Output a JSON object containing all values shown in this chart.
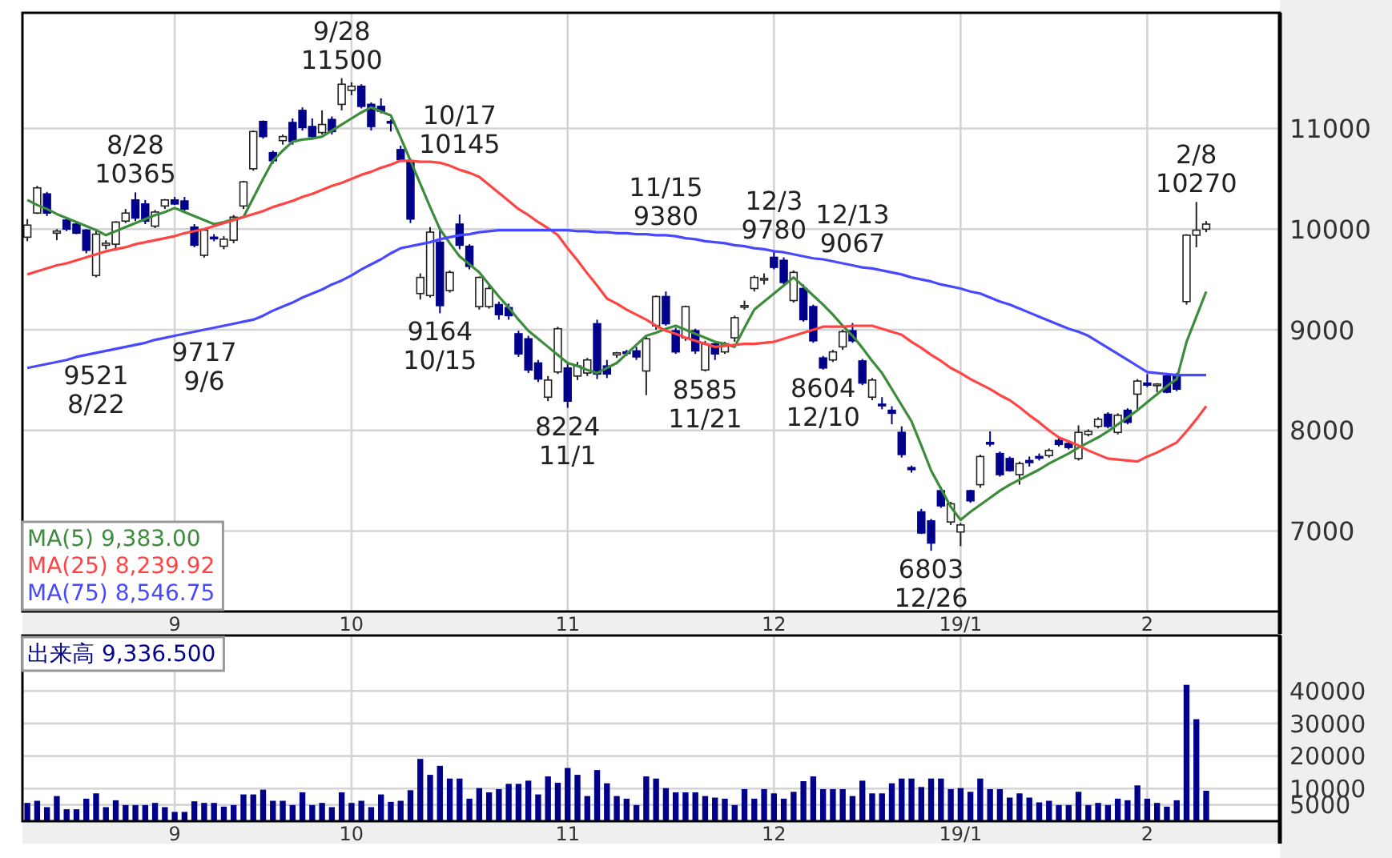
{
  "chart_data": [
    {
      "type": "candlestick",
      "grid": true,
      "legend": "bottom left",
      "ylim": [
        6200,
        12150
      ],
      "yticks": [
        7000,
        8000,
        9000,
        10000,
        11000
      ],
      "categories": [
        null,
        null,
        null,
        null,
        null,
        null,
        null,
        null,
        null,
        null,
        null,
        null,
        null,
        null,
        null,
        "9",
        null,
        null,
        null,
        null,
        null,
        null,
        null,
        null,
        null,
        null,
        null,
        null,
        null,
        null,
        null,
        null,
        null,
        "10",
        null,
        null,
        null,
        null,
        null,
        null,
        null,
        null,
        null,
        null,
        null,
        null,
        null,
        null,
        null,
        null,
        null,
        null,
        null,
        null,
        null,
        "11",
        null,
        null,
        null,
        null,
        null,
        null,
        null,
        null,
        null,
        null,
        null,
        null,
        null,
        null,
        null,
        null,
        null,
        null,
        null,
        null,
        "12",
        null,
        null,
        null,
        null,
        null,
        null,
        null,
        null,
        null,
        null,
        null,
        null,
        null,
        null,
        null,
        null,
        null,
        null,
        "19/1",
        null,
        null,
        null,
        null,
        null,
        null,
        null,
        null,
        null,
        null,
        null,
        null,
        null,
        null,
        null,
        null,
        null,
        null,
        "2",
        null,
        null,
        null,
        null,
        null,
        null,
        null,
        null,
        null,
        null,
        null,
        null,
        null
      ],
      "ohlc": [
        [
          9920,
          10100,
          9880,
          10040
        ],
        [
          10160,
          10430,
          10150,
          10410
        ],
        [
          10350,
          10370,
          10130,
          10160
        ],
        [
          9960,
          10000,
          9890,
          9980
        ],
        [
          10090,
          10110,
          9980,
          10000
        ],
        [
          10050,
          10080,
          9950,
          9960
        ],
        [
          9990,
          10000,
          9760,
          9790
        ],
        [
          9540,
          10000,
          9521,
          9950
        ],
        [
          9840,
          9890,
          9800,
          9860
        ],
        [
          9850,
          10080,
          9810,
          10070
        ],
        [
          10080,
          10200,
          10060,
          10160
        ],
        [
          10290,
          10365,
          10080,
          10110
        ],
        [
          10250,
          10290,
          10050,
          10080
        ],
        [
          10030,
          10190,
          10010,
          10170
        ],
        [
          10230,
          10300,
          10200,
          10290
        ],
        [
          10290,
          10320,
          10240,
          10250
        ],
        [
          10280,
          10320,
          10180,
          10200
        ],
        [
          10020,
          10050,
          9820,
          9840
        ],
        [
          9740,
          10010,
          9717,
          9990
        ],
        [
          9920,
          9950,
          9880,
          9910
        ],
        [
          9830,
          9930,
          9800,
          9900
        ],
        [
          9890,
          10140,
          9860,
          10120
        ],
        [
          10230,
          10480,
          10200,
          10470
        ],
        [
          10600,
          10980,
          10580,
          10970
        ],
        [
          11070,
          11080,
          10900,
          10920
        ],
        [
          10760,
          10780,
          10650,
          10680
        ],
        [
          10880,
          10940,
          10840,
          10920
        ],
        [
          11060,
          11100,
          10840,
          10870
        ],
        [
          11180,
          11210,
          10980,
          11010
        ],
        [
          11020,
          11100,
          10900,
          10920
        ],
        [
          10960,
          11180,
          10940,
          11040
        ],
        [
          11090,
          11120,
          10940,
          10970
        ],
        [
          11240,
          11500,
          11180,
          11440
        ],
        [
          11380,
          11460,
          11330,
          11420
        ],
        [
          11420,
          11440,
          11200,
          11220
        ],
        [
          11240,
          11260,
          10980,
          11020
        ],
        [
          11220,
          11300,
          11150,
          11170
        ],
        [
          11070,
          11090,
          10970,
          11060
        ],
        [
          10790,
          10830,
          10680,
          10690
        ],
        [
          10680,
          10700,
          10060,
          10100
        ],
        [
          9360,
          9560,
          9300,
          9520
        ],
        [
          9340,
          10020,
          9320,
          9970
        ],
        [
          9870,
          10020,
          9164,
          9240
        ],
        [
          9390,
          9590,
          9370,
          9570
        ],
        [
          10050,
          10145,
          9800,
          9840
        ],
        [
          9830,
          9850,
          9600,
          9630
        ],
        [
          9230,
          9530,
          9200,
          9520
        ],
        [
          9230,
          9440,
          9210,
          9410
        ],
        [
          9250,
          9280,
          9100,
          9150
        ],
        [
          9220,
          9260,
          9100,
          9140
        ],
        [
          8960,
          8990,
          8730,
          8760
        ],
        [
          8910,
          8940,
          8570,
          8600
        ],
        [
          8670,
          8700,
          8480,
          8510
        ],
        [
          8330,
          8540,
          8290,
          8500
        ],
        [
          8580,
          9030,
          8560,
          9010
        ],
        [
          8620,
          8660,
          8224,
          8290
        ],
        [
          8540,
          8680,
          8500,
          8640
        ],
        [
          8570,
          8720,
          8540,
          8700
        ],
        [
          9060,
          9100,
          8510,
          8560
        ],
        [
          8640,
          8700,
          8520,
          8560
        ],
        [
          8750,
          8780,
          8720,
          8770
        ],
        [
          8780,
          8800,
          8740,
          8770
        ],
        [
          8790,
          8830,
          8700,
          8730
        ],
        [
          8590,
          8930,
          8350,
          8910
        ],
        [
          9040,
          9340,
          9000,
          9330
        ],
        [
          9330,
          9380,
          9040,
          9060
        ],
        [
          8990,
          9020,
          8760,
          8780
        ],
        [
          8920,
          9240,
          8890,
          9230
        ],
        [
          8990,
          9010,
          8760,
          8790
        ],
        [
          8600,
          8890,
          8585,
          8860
        ],
        [
          8860,
          8870,
          8700,
          8760
        ],
        [
          8780,
          8880,
          8760,
          8860
        ],
        [
          8920,
          9140,
          8880,
          9120
        ],
        [
          9230,
          9290,
          9200,
          9240
        ],
        [
          9410,
          9540,
          9380,
          9520
        ],
        [
          9500,
          9560,
          9450,
          9510
        ],
        [
          9720,
          9780,
          9600,
          9620
        ],
        [
          9690,
          9720,
          9440,
          9470
        ],
        [
          9290,
          9590,
          9270,
          9570
        ],
        [
          9410,
          9450,
          9080,
          9100
        ],
        [
          9230,
          9250,
          8870,
          8890
        ],
        [
          8720,
          8740,
          8604,
          8620
        ],
        [
          8700,
          8800,
          8680,
          8780
        ],
        [
          8830,
          9000,
          8800,
          8980
        ],
        [
          8990,
          9067,
          8870,
          8890
        ],
        [
          8690,
          8710,
          8450,
          8470
        ],
        [
          8330,
          8520,
          8300,
          8500
        ],
        [
          8260,
          8330,
          8210,
          8250
        ],
        [
          8200,
          8240,
          8060,
          8170
        ],
        [
          7980,
          8040,
          7730,
          7760
        ],
        [
          7630,
          7650,
          7580,
          7610
        ],
        [
          7190,
          7220,
          6970,
          6980
        ],
        [
          7100,
          7120,
          6803,
          6880
        ],
        [
          7400,
          7440,
          7230,
          7250
        ],
        [
          7090,
          7290,
          7060,
          7270
        ],
        [
          6990,
          7080,
          6850,
          7060
        ],
        [
          7400,
          7410,
          7280,
          7300
        ],
        [
          7460,
          7760,
          7430,
          7740
        ],
        [
          7880,
          7990,
          7840,
          7870
        ],
        [
          7770,
          7790,
          7540,
          7560
        ],
        [
          7720,
          7740,
          7590,
          7600
        ],
        [
          7560,
          7690,
          7460,
          7670
        ],
        [
          7700,
          7740,
          7640,
          7680
        ],
        [
          7740,
          7770,
          7700,
          7730
        ],
        [
          7750,
          7820,
          7730,
          7800
        ],
        [
          7900,
          7940,
          7840,
          7860
        ],
        [
          7870,
          7900,
          7810,
          7830
        ],
        [
          7720,
          8050,
          7700,
          7980
        ],
        [
          7960,
          8010,
          7940,
          7990
        ],
        [
          8040,
          8130,
          8020,
          8110
        ],
        [
          8160,
          8180,
          8020,
          8040
        ],
        [
          7980,
          8170,
          7960,
          8150
        ],
        [
          8200,
          8220,
          8060,
          8080
        ],
        [
          8360,
          8510,
          8200,
          8490
        ],
        [
          8470,
          8560,
          8430,
          8450
        ],
        [
          8450,
          8470,
          8380,
          8460
        ],
        [
          8540,
          8550,
          8370,
          8380
        ],
        [
          8540,
          8570,
          8390,
          8410
        ],
        [
          9280,
          9950,
          9250,
          9940
        ],
        [
          9940,
          10270,
          9820,
          9990
        ],
        [
          10000,
          10080,
          9970,
          10050
        ],
        null,
        null,
        null,
        null,
        null,
        null,
        null
      ],
      "value_labels": [
        null,
        null,
        null,
        null,
        null,
        null,
        null,
        "9521\n8/22",
        null,
        null,
        null,
        "8/28\n10365",
        null,
        null,
        null,
        null,
        null,
        null,
        "9717\n9/6",
        null,
        null,
        null,
        null,
        null,
        null,
        null,
        null,
        null,
        null,
        null,
        null,
        null,
        "9/28\n11500",
        null,
        null,
        null,
        null,
        null,
        null,
        null,
        null,
        null,
        "9164\n10/15",
        null,
        "10/17\n10145",
        null,
        null,
        null,
        null,
        null,
        null,
        null,
        null,
        null,
        null,
        "8224\n11/1",
        null,
        null,
        null,
        null,
        null,
        null,
        null,
        null,
        null,
        "11/15\n9380",
        null,
        null,
        null,
        "8585\n11/21",
        null,
        null,
        null,
        null,
        null,
        null,
        "12/3\n9780",
        null,
        null,
        null,
        null,
        "8604\n12/10",
        null,
        null,
        "12/13\n9067",
        null,
        null,
        null,
        null,
        null,
        null,
        null,
        "6803\n12/26",
        null,
        null,
        null,
        null,
        null,
        null,
        null,
        null,
        null,
        null,
        null,
        null,
        null,
        null,
        null,
        null,
        null,
        null,
        null,
        null,
        null,
        null,
        null,
        null,
        null,
        null,
        "2/8\n10270",
        null,
        null,
        null,
        null,
        null,
        null,
        null,
        null
      ],
      "series": [
        {
          "name": "MA(5) 9,383.00",
          "type": "line",
          "color": "#3c8c3c",
          "values": [
            10290,
            10240,
            10200,
            10150,
            10110,
            10070,
            10030,
            9990,
            9940,
            9980,
            10020,
            10060,
            10100,
            10140,
            10170,
            10210,
            10170,
            10130,
            10090,
            10050,
            10070,
            10100,
            10120,
            10310,
            10500,
            10680,
            10780,
            10870,
            10890,
            10900,
            10920,
            10980,
            11040,
            11100,
            11160,
            11210,
            11170,
            11130,
            10910,
            10680,
            10450,
            10220,
            10000,
            9860,
            9730,
            9650,
            9570,
            9450,
            9330,
            9220,
            9100,
            8990,
            8910,
            8830,
            8750,
            8670,
            8640,
            8600,
            8570,
            8620,
            8670,
            8760,
            8850,
            8940,
            8970,
            9010,
            9040,
            9000,
            8960,
            8920,
            8880,
            8860,
            8830,
            9020,
            9200,
            9280,
            9360,
            9440,
            9520,
            9430,
            9340,
            9250,
            9150,
            9040,
            8940,
            8820,
            8690,
            8570,
            8410,
            8250,
            8090,
            7850,
            7600,
            7420,
            7240,
            7110,
            7190,
            7260,
            7330,
            7400,
            7460,
            7510,
            7560,
            7610,
            7670,
            7720,
            7770,
            7830,
            7880,
            7930,
            7990,
            8060,
            8130,
            8200,
            8280,
            8360,
            8440,
            8510,
            8880,
            9130,
            9380,
            null,
            null,
            null,
            null,
            null,
            null,
            null
          ]
        },
        {
          "name": "MA(25) 8,239.92",
          "type": "line",
          "color": "#ff4444",
          "values": [
            9550,
            9580,
            9610,
            9640,
            9660,
            9690,
            9720,
            9750,
            9780,
            9800,
            9820,
            9850,
            9870,
            9890,
            9910,
            9930,
            9960,
            9980,
            10000,
            10030,
            10060,
            10090,
            10120,
            10150,
            10180,
            10220,
            10250,
            10280,
            10320,
            10350,
            10390,
            10430,
            10460,
            10500,
            10540,
            10570,
            10610,
            10640,
            10680,
            10680,
            10670,
            10670,
            10660,
            10630,
            10590,
            10560,
            10520,
            10440,
            10360,
            10280,
            10200,
            10140,
            10070,
            10010,
            9940,
            9810,
            9690,
            9560,
            9440,
            9310,
            9260,
            9200,
            9150,
            9100,
            9040,
            8990,
            8960,
            8920,
            8890,
            8860,
            8830,
            8840,
            8850,
            8860,
            8860,
            8870,
            8880,
            8910,
            8940,
            8970,
            9000,
            9030,
            9030,
            9030,
            9040,
            9040,
            9040,
            9010,
            8980,
            8950,
            8880,
            8820,
            8750,
            8690,
            8620,
            8570,
            8510,
            8460,
            8410,
            8350,
            8300,
            8230,
            8150,
            8080,
            8000,
            7930,
            7890,
            7850,
            7800,
            7760,
            7720,
            7710,
            7700,
            7690,
            7740,
            7780,
            7830,
            7880,
            7990,
            8110,
            8240,
            null,
            null,
            null,
            null,
            null,
            null,
            null
          ]
        },
        {
          "name": "MA(75) 8,546.75",
          "type": "line",
          "color": "#4848ff",
          "values": [
            8620,
            8640,
            8660,
            8680,
            8700,
            8730,
            8750,
            8770,
            8790,
            8810,
            8830,
            8850,
            8870,
            8900,
            8920,
            8940,
            8960,
            8980,
            9000,
            9020,
            9040,
            9060,
            9080,
            9100,
            9140,
            9190,
            9230,
            9270,
            9320,
            9360,
            9400,
            9450,
            9490,
            9540,
            9600,
            9650,
            9700,
            9760,
            9810,
            9830,
            9850,
            9870,
            9900,
            9920,
            9940,
            9950,
            9970,
            9980,
            9990,
            9990,
            9990,
            9990,
            9990,
            9990,
            9990,
            9990,
            9980,
            9980,
            9970,
            9970,
            9960,
            9960,
            9950,
            9950,
            9940,
            9940,
            9930,
            9910,
            9900,
            9880,
            9870,
            9860,
            9840,
            9830,
            9810,
            9800,
            9780,
            9770,
            9750,
            9730,
            9710,
            9700,
            9680,
            9660,
            9640,
            9620,
            9610,
            9590,
            9570,
            9550,
            9520,
            9500,
            9480,
            9450,
            9430,
            9410,
            9380,
            9360,
            9320,
            9280,
            9250,
            9210,
            9170,
            9130,
            9090,
            9050,
            9010,
            8980,
            8940,
            8880,
            8820,
            8760,
            8700,
            8640,
            8580,
            8570,
            8560,
            8550,
            8550,
            8550,
            8550,
            null,
            null,
            null,
            null,
            null,
            null,
            null
          ]
        }
      ]
    },
    {
      "type": "bar",
      "grid": true,
      "legend": "top left",
      "ylim": [
        0,
        57000
      ],
      "yticks": [
        {
          "value": 5000,
          "label": "5000"
        },
        10000,
        20000,
        30000,
        40000
      ],
      "categories": [
        null,
        null,
        null,
        null,
        null,
        null,
        null,
        null,
        null,
        null,
        null,
        null,
        null,
        null,
        null,
        "9",
        null,
        null,
        null,
        null,
        null,
        null,
        null,
        null,
        null,
        null,
        null,
        null,
        null,
        null,
        null,
        null,
        null,
        "10",
        null,
        null,
        null,
        null,
        null,
        null,
        null,
        null,
        null,
        null,
        null,
        null,
        null,
        null,
        null,
        null,
        null,
        null,
        null,
        null,
        null,
        "11",
        null,
        null,
        null,
        null,
        null,
        null,
        null,
        null,
        null,
        null,
        null,
        null,
        null,
        null,
        null,
        null,
        null,
        null,
        null,
        null,
        "12",
        null,
        null,
        null,
        null,
        null,
        null,
        null,
        null,
        null,
        null,
        null,
        null,
        null,
        null,
        null,
        null,
        null,
        null,
        "19/1",
        null,
        null,
        null,
        null,
        null,
        null,
        null,
        null,
        null,
        null,
        null,
        null,
        null,
        null,
        null,
        null,
        null,
        null,
        "2",
        null,
        null,
        null,
        null,
        null,
        null,
        null,
        null,
        null,
        null,
        null,
        null,
        null
      ],
      "series": [
        {
          "name": "出来高 9,336.500",
          "color": "#00008b",
          "values": [
            5610,
            6260,
            4310,
            7720,
            3660,
            3660,
            6910,
            8540,
            4310,
            6420,
            4960,
            4960,
            4960,
            5610,
            4310,
            2850,
            2850,
            6100,
            5610,
            5610,
            4470,
            4960,
            8210,
            8210,
            9670,
            6260,
            6260,
            4960,
            8860,
            4960,
            5610,
            4310,
            8860,
            5610,
            6260,
            4310,
            8210,
            5930,
            6260,
            9510,
            19110,
            14230,
            16990,
            13090,
            13090,
            6910,
            10160,
            8860,
            9840,
            11460,
            11460,
            12440,
            8210,
            13740,
            11790,
            16340,
            14230,
            7720,
            15690,
            11630,
            7720,
            6910,
            4960,
            13740,
            13090,
            10160,
            8860,
            8860,
            8860,
            7720,
            7240,
            6910,
            4960,
            9840,
            6910,
            9840,
            8540,
            6910,
            9020,
            12280,
            13740,
            9840,
            9840,
            9840,
            7720,
            12440,
            8540,
            8540,
            11630,
            13090,
            13090,
            10490,
            13090,
            13090,
            9840,
            10160,
            9020,
            13090,
            9840,
            9840,
            7240,
            8540,
            7240,
            5770,
            6260,
            4960,
            4960,
            9020,
            4960,
            5610,
            4960,
            6910,
            6420,
            10980,
            6910,
            5610,
            4470,
            6420,
            41850,
            31300,
            9336.5,
            null,
            null,
            null,
            null,
            null,
            null,
            null
          ]
        }
      ]
    }
  ]
}
